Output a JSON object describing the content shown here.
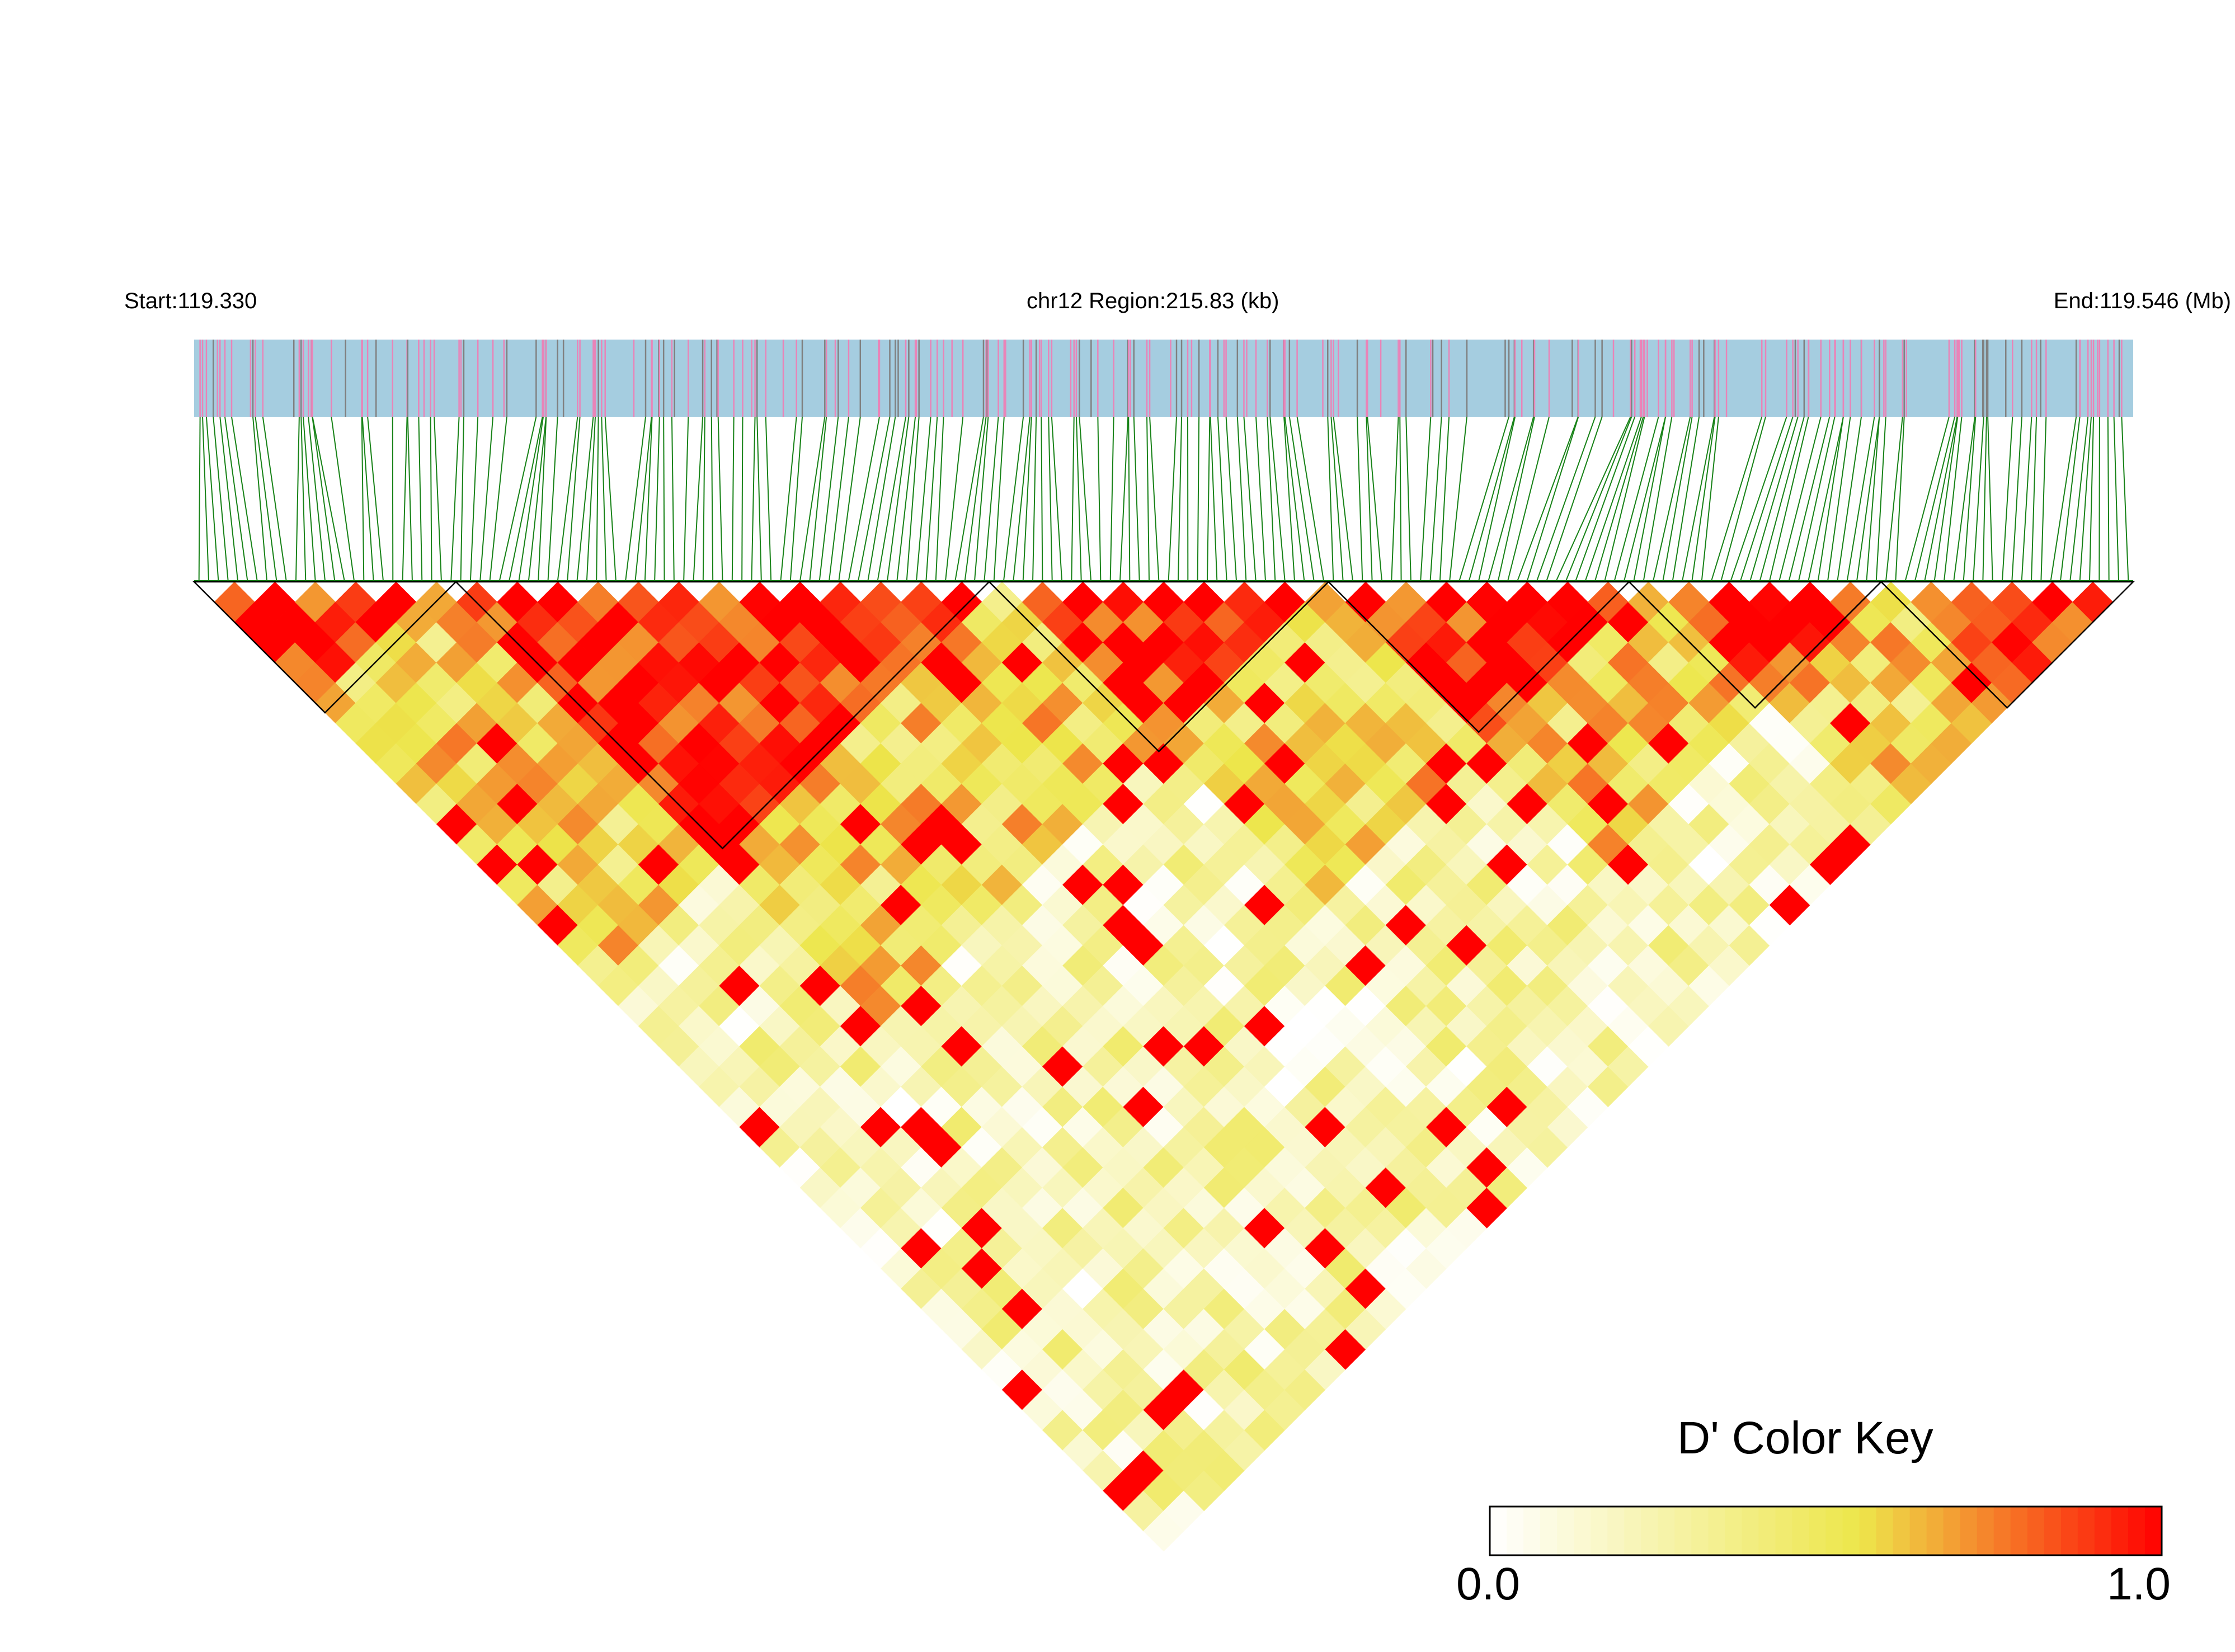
{
  "header": {
    "start_label": "Start:119.330",
    "region_label": "chr12 Region:215.83 (kb)",
    "end_label": "End:119.546 (Mb)"
  },
  "colors": {
    "track_background": "#a5cde0",
    "track_marker_pink": "#e984b8",
    "track_marker_gray": "#808080",
    "connector_lines": "#178217",
    "block_outline": "#000000",
    "key_low": "#ffffff",
    "key_mid": "#ede64b",
    "key_high": "#ff0000"
  },
  "chart_data": {
    "type": "heatmap",
    "description_type": "linkage disequilibrium triangle",
    "chromosome": "chr12",
    "start_mb": 119.33,
    "end_mb": 119.546,
    "region_kb": 215.83,
    "metric": "D'",
    "value_range": [
      0.0,
      1.0
    ],
    "cell_resolution": 48,
    "high_ld_blocks": [
      {
        "start_frac": 0.0,
        "end_frac": 0.135
      },
      {
        "start_frac": 0.135,
        "end_frac": 0.41
      },
      {
        "start_frac": 0.41,
        "end_frac": 0.585
      },
      {
        "start_frac": 0.585,
        "end_frac": 0.74
      },
      {
        "start_frac": 0.74,
        "end_frac": 0.87
      },
      {
        "start_frac": 0.87,
        "end_frac": 1.0
      }
    ],
    "block_ld": {
      "within_block": 0.92,
      "adjacent_block": 0.55,
      "background": 0.22
    }
  },
  "legend": {
    "title": "D' Color Key",
    "min_label": "0.0",
    "max_label": "1.0",
    "stops": [
      0.0,
      0.5,
      0.6,
      1.0
    ]
  }
}
